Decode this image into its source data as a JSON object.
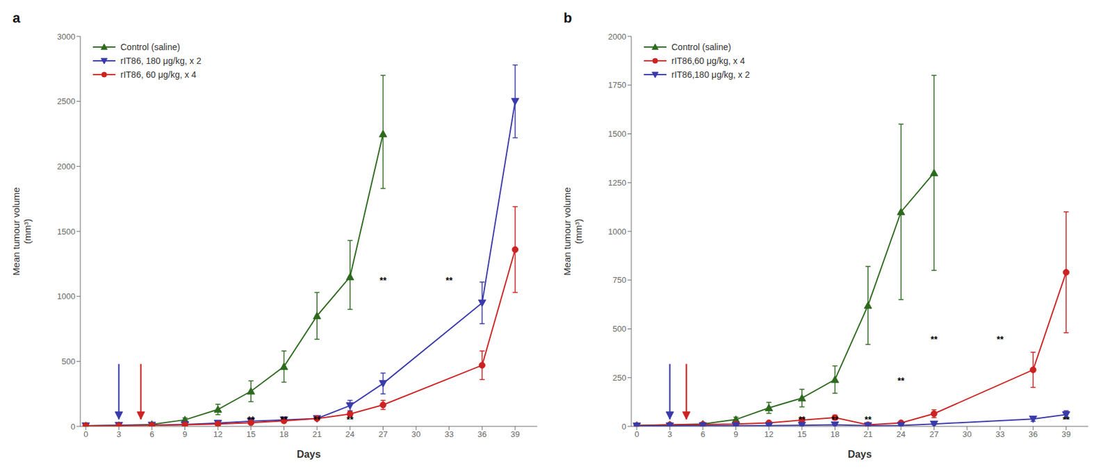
{
  "chart_data": [
    {
      "type": "line",
      "title": "a",
      "x_label": "Days",
      "y_label": "Mean tumour volume\n(mm³)",
      "x": [
        0,
        3,
        6,
        9,
        12,
        15,
        18,
        21,
        24,
        27,
        36,
        39
      ],
      "xlim": [
        -0.5,
        41
      ],
      "xticks": [
        0,
        3,
        6,
        9,
        12,
        15,
        18,
        21,
        24,
        27,
        30,
        33,
        36,
        39
      ],
      "ylim": [
        0,
        3000
      ],
      "yticks": [
        0,
        500,
        1000,
        1500,
        2000,
        2500,
        3000
      ],
      "grid": false,
      "legend": "upper left",
      "series": [
        {
          "name": "Control (saline)",
          "color": "#2d6a1e",
          "marker": "triangle-up",
          "values": [
            5,
            8,
            15,
            50,
            130,
            270,
            460,
            850,
            1150,
            2250,
            null,
            null
          ],
          "error_lo": [
            3,
            4,
            6,
            15,
            40,
            80,
            120,
            180,
            250,
            420,
            null,
            null
          ],
          "error_hi": [
            3,
            4,
            6,
            15,
            40,
            80,
            120,
            180,
            280,
            450,
            null,
            null
          ]
        },
        {
          "name": "rIT86, 180 μg/kg, x 2",
          "color": "#3a3aaa",
          "marker": "triangle-down",
          "values": [
            5,
            8,
            10,
            15,
            25,
            40,
            50,
            60,
            160,
            330,
            950,
            2500
          ],
          "error_lo": [
            2,
            3,
            4,
            5,
            8,
            10,
            12,
            12,
            40,
            80,
            160,
            280
          ],
          "error_hi": [
            2,
            3,
            4,
            5,
            8,
            10,
            12,
            12,
            40,
            80,
            160,
            280
          ]
        },
        {
          "name": "rIT86, 60 μg/kg, x 4",
          "color": "#cc2222",
          "marker": "circle",
          "values": [
            5,
            5,
            8,
            12,
            18,
            28,
            42,
            60,
            95,
            165,
            470,
            1360
          ],
          "error_lo": [
            2,
            2,
            3,
            4,
            6,
            8,
            10,
            12,
            20,
            35,
            110,
            330
          ],
          "error_hi": [
            2,
            2,
            3,
            4,
            6,
            8,
            10,
            12,
            20,
            35,
            110,
            330
          ]
        }
      ],
      "annotations": [
        {
          "x": 15,
          "y": 30,
          "text": "**"
        },
        {
          "x": 18,
          "y": 30,
          "text": "**"
        },
        {
          "x": 21,
          "y": 30,
          "text": "**"
        },
        {
          "x": 24,
          "y": 30,
          "text": "**"
        },
        {
          "x": 27,
          "y": 1100,
          "text": "**"
        },
        {
          "x": 33,
          "y": 1100,
          "text": "**"
        }
      ],
      "arrows": [
        {
          "x": 3,
          "y_start": 480,
          "y_end": 54,
          "color": "#3a3aaa"
        },
        {
          "x": 5,
          "y_start": 480,
          "y_end": 54,
          "color": "#cc2222"
        }
      ]
    },
    {
      "type": "line",
      "title": "b",
      "x_label": "Days",
      "y_label": "Mean tumour volume\n(mm³)",
      "x": [
        0,
        3,
        6,
        9,
        12,
        15,
        18,
        21,
        24,
        27,
        36,
        39
      ],
      "xlim": [
        -0.5,
        41
      ],
      "xticks": [
        0,
        3,
        6,
        9,
        12,
        15,
        18,
        21,
        24,
        27,
        30,
        33,
        36,
        39
      ],
      "ylim": [
        0,
        2000
      ],
      "yticks": [
        0,
        250,
        500,
        750,
        1000,
        1250,
        1500,
        1750,
        2000
      ],
      "grid": false,
      "legend": "upper left",
      "series": [
        {
          "name": "Control (saline)",
          "color": "#2d6a1e",
          "marker": "triangle-up",
          "values": [
            5,
            8,
            12,
            35,
            95,
            145,
            240,
            620,
            1100,
            1300,
            null,
            null
          ],
          "error_lo": [
            2,
            3,
            4,
            12,
            28,
            45,
            70,
            200,
            450,
            500,
            null,
            null
          ],
          "error_hi": [
            2,
            3,
            4,
            12,
            28,
            45,
            70,
            200,
            450,
            500,
            null,
            null
          ]
        },
        {
          "name": "rIT86,60 μg/kg, x 4",
          "color": "#cc2222",
          "marker": "circle",
          "values": [
            5,
            8,
            10,
            12,
            18,
            32,
            45,
            8,
            18,
            65,
            290,
            790
          ],
          "error_lo": [
            2,
            2,
            3,
            4,
            6,
            8,
            12,
            3,
            6,
            20,
            90,
            310
          ],
          "error_hi": [
            2,
            2,
            3,
            4,
            6,
            8,
            12,
            3,
            6,
            20,
            90,
            310
          ]
        },
        {
          "name": "rIT86,180 μg/kg, x 2",
          "color": "#3a3aaa",
          "marker": "triangle-down",
          "values": [
            2,
            3,
            4,
            4,
            4,
            6,
            8,
            4,
            5,
            12,
            38,
            60
          ],
          "error_lo": [
            1,
            1,
            2,
            1,
            1,
            2,
            2,
            1,
            2,
            4,
            12,
            20
          ],
          "error_hi": [
            1,
            1,
            2,
            1,
            1,
            2,
            2,
            1,
            2,
            4,
            12,
            20
          ]
        }
      ],
      "annotations": [
        {
          "x": 15,
          "y": 20,
          "text": "**"
        },
        {
          "x": 18,
          "y": 20,
          "text": "**"
        },
        {
          "x": 21,
          "y": 20,
          "text": "**"
        },
        {
          "x": 24,
          "y": 220,
          "text": "**"
        },
        {
          "x": 27,
          "y": 430,
          "text": "**"
        },
        {
          "x": 33,
          "y": 430,
          "text": "**"
        },
        {
          "x": 39,
          "y": 20,
          "text": "**"
        }
      ],
      "arrows": [
        {
          "x": 3,
          "y_start": 320,
          "y_end": 36,
          "color": "#3a3aaa"
        },
        {
          "x": 4.5,
          "y_start": 320,
          "y_end": 36,
          "color": "#cc2222"
        }
      ]
    }
  ]
}
